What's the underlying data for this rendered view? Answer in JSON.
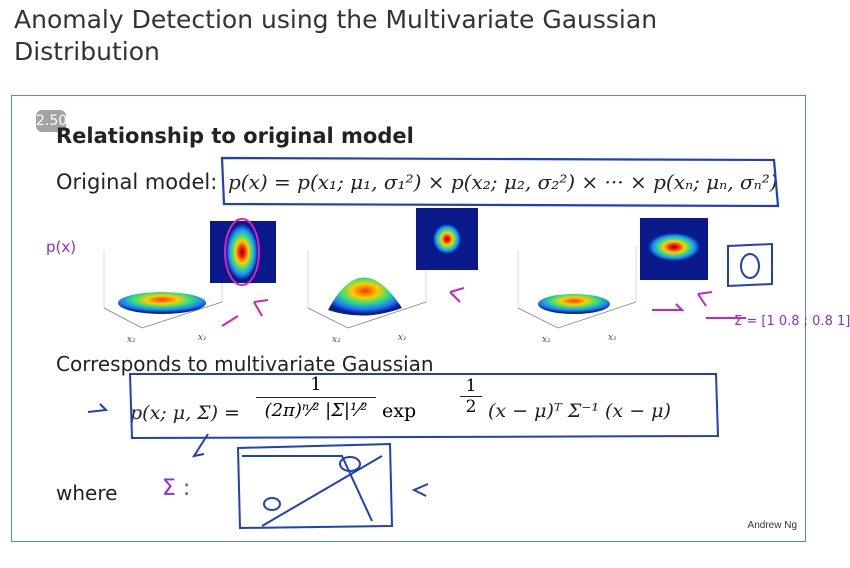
{
  "page": {
    "title": "Anomaly Detection using the Multivariate Gaussian Distribution"
  },
  "slide": {
    "badge": "2.50",
    "heading": "Relationship to original model",
    "original_label": "Original model:",
    "original_formula": "p(x) = p(x₁; μ₁, σ₁²) × p(x₂; μ₂, σ₂²) × ··· × p(xₙ; μₙ, σₙ²)",
    "corresponds": "Corresponds to multivariate Gaussian",
    "mv_lhs": "p(x; μ, Σ) =",
    "mv_frac_num": "1",
    "mv_frac_den": "(2π)ⁿ⁄² |Σ|¹⁄²",
    "mv_exp": "exp",
    "mv_half_num": "1",
    "mv_half_den": "2",
    "mv_rest": "(x − μ)ᵀ Σ⁻¹ (x − μ)",
    "where": "where",
    "author": "Andrew Ng",
    "annotations": {
      "px": "p(x)",
      "sigma_matrix": "Σ = [1 0.8 ; 0.8 1]",
      "sigma_symbol": "Σ :"
    },
    "axis_labels": {
      "x1": "x₁",
      "x2": "x₂"
    }
  },
  "colors": {
    "ink": "#8a2be2",
    "frame_border": "#4b8fd6",
    "formula_box": "#1f3fbf"
  }
}
